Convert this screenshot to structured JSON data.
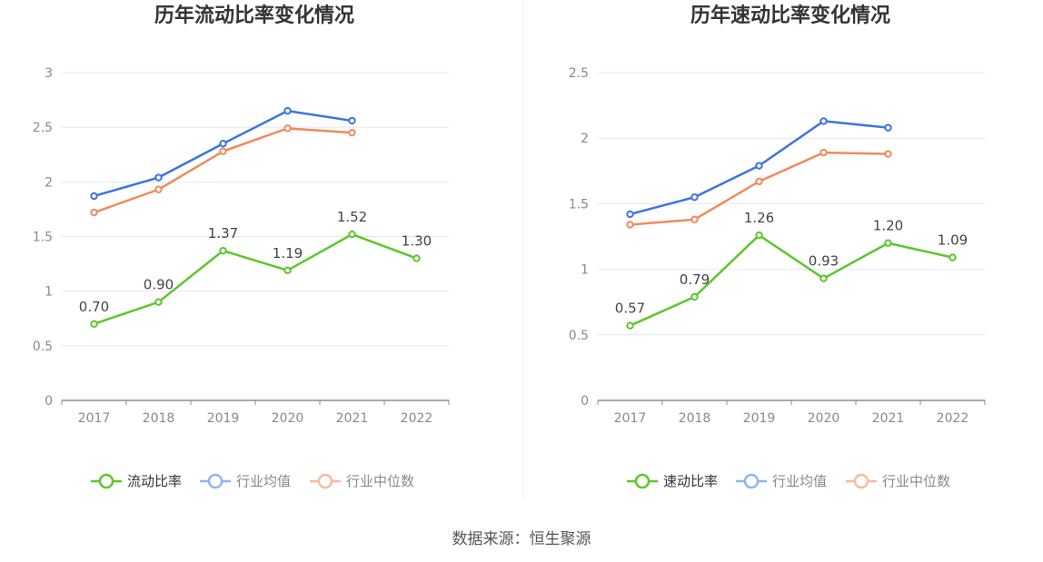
{
  "source_text": "数据来源：恒生聚源",
  "chart_data": [
    {
      "type": "line",
      "title": "历年流动比率变化情况",
      "categories": [
        "2017",
        "2018",
        "2019",
        "2020",
        "2021",
        "2022"
      ],
      "ylim": [
        0,
        3
      ],
      "yticks": [
        0,
        0.5,
        1,
        1.5,
        2,
        2.5,
        3
      ],
      "ytick_labels": [
        "0",
        "0.5",
        "1",
        "1.5",
        "2",
        "2.5",
        "3"
      ],
      "grid": true,
      "legend_position": "bottom",
      "series": [
        {
          "name": "流动比率",
          "color": "#5cc72c",
          "legend_color": "#5cc72c",
          "labeled": true,
          "values": [
            0.7,
            0.9,
            1.37,
            1.19,
            1.52,
            1.3
          ],
          "labels": [
            "0.70",
            "0.90",
            "1.37",
            "1.19",
            "1.52",
            "1.30"
          ]
        },
        {
          "name": "行业均值",
          "color": "#3b74e0",
          "legend_color": "#93b4ee",
          "labeled": false,
          "values": [
            1.87,
            2.04,
            2.35,
            2.65,
            2.56,
            null
          ]
        },
        {
          "name": "行业中位数",
          "color": "#f08a5d",
          "legend_color": "#f7bba0",
          "labeled": false,
          "values": [
            1.72,
            1.93,
            2.28,
            2.49,
            2.45,
            null
          ]
        }
      ]
    },
    {
      "type": "line",
      "title": "历年速动比率变化情况",
      "categories": [
        "2017",
        "2018",
        "2019",
        "2020",
        "2021",
        "2022"
      ],
      "ylim": [
        0,
        2.5
      ],
      "yticks": [
        0,
        0.5,
        1,
        1.5,
        2,
        2.5
      ],
      "ytick_labels": [
        "0",
        "0.5",
        "1",
        "1.5",
        "2",
        "2.5"
      ],
      "grid": true,
      "legend_position": "bottom",
      "series": [
        {
          "name": "速动比率",
          "color": "#5cc72c",
          "legend_color": "#5cc72c",
          "labeled": true,
          "values": [
            0.57,
            0.79,
            1.26,
            0.93,
            1.2,
            1.09
          ],
          "labels": [
            "0.57",
            "0.79",
            "1.26",
            "0.93",
            "1.20",
            "1.09"
          ]
        },
        {
          "name": "行业均值",
          "color": "#3b74e0",
          "legend_color": "#93b4ee",
          "labeled": false,
          "values": [
            1.42,
            1.55,
            1.79,
            2.13,
            2.08,
            null
          ]
        },
        {
          "name": "行业中位数",
          "color": "#f08a5d",
          "legend_color": "#f7bba0",
          "labeled": false,
          "values": [
            1.34,
            1.38,
            1.67,
            1.89,
            1.88,
            null
          ]
        }
      ]
    }
  ]
}
